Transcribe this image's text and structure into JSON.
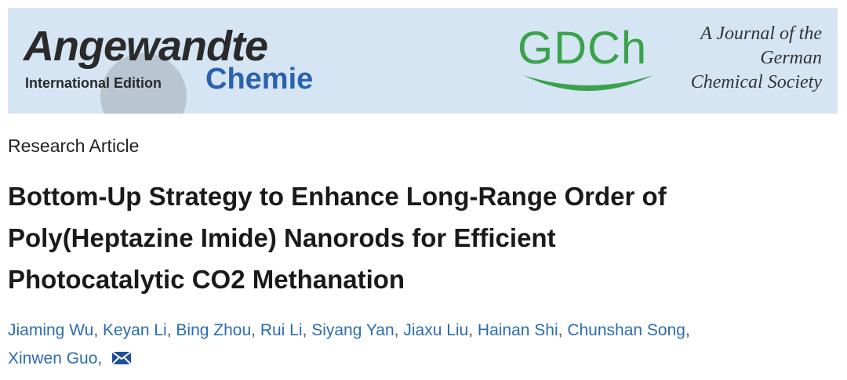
{
  "header": {
    "journal_name": "Angewandte",
    "edition": "International Edition",
    "subtitle": "Chemie",
    "society_logo": "GDCh",
    "society_lines": [
      "A Journal of the",
      "German",
      "Chemical Society"
    ]
  },
  "article_type": "Research Article",
  "title_lines": [
    "Bottom-Up Strategy to Enhance Long-Range Order of",
    "Poly(Heptazine Imide) Nanorods for Efficient",
    "Photocatalytic CO2 Methanation"
  ],
  "author_lines": [
    [
      "Jiaming Wu",
      "Keyan Li",
      "Bing Zhou",
      "Rui Li",
      "Siyang Yan",
      "Jiaxu Liu",
      "Hainan Shi",
      "Chunshan Song"
    ],
    [
      "Xinwen Guo"
    ]
  ]
}
